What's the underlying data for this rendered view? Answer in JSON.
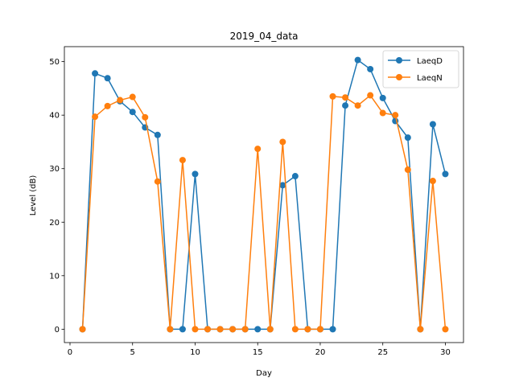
{
  "chart_data": {
    "type": "line",
    "title": "2019_04_data",
    "xlabel": "Day",
    "ylabel": "Level (dB)",
    "xlim": [
      -0.45,
      31.45
    ],
    "ylim": [
      -2.5,
      52.8
    ],
    "xticks": [
      0,
      5,
      10,
      15,
      20,
      25,
      30
    ],
    "yticks": [
      0,
      10,
      20,
      30,
      40,
      50
    ],
    "grid": false,
    "legend_position": "top-right",
    "x": [
      1,
      2,
      3,
      4,
      5,
      6,
      7,
      8,
      9,
      10,
      11,
      12,
      13,
      14,
      15,
      16,
      17,
      18,
      19,
      20,
      21,
      22,
      23,
      24,
      25,
      26,
      27,
      28,
      29,
      30
    ],
    "series": [
      {
        "name": "LaeqD",
        "color": "#1f77b4",
        "values": [
          0,
          47.8,
          46.9,
          42.6,
          40.6,
          37.7,
          36.3,
          0,
          0,
          29.0,
          0,
          0,
          0,
          0,
          0,
          0,
          26.9,
          28.6,
          0,
          0,
          0,
          41.8,
          50.3,
          48.6,
          43.2,
          38.9,
          35.8,
          0,
          38.3,
          29.0
        ]
      },
      {
        "name": "LaeqN",
        "color": "#ff7f0e",
        "values": [
          0,
          39.7,
          41.7,
          42.8,
          43.4,
          39.6,
          27.6,
          0,
          31.6,
          0,
          0,
          0,
          0,
          0,
          33.7,
          0,
          35.0,
          0,
          0,
          0,
          43.5,
          43.3,
          41.8,
          43.7,
          40.4,
          40.0,
          29.8,
          0,
          27.7,
          0
        ]
      }
    ]
  }
}
